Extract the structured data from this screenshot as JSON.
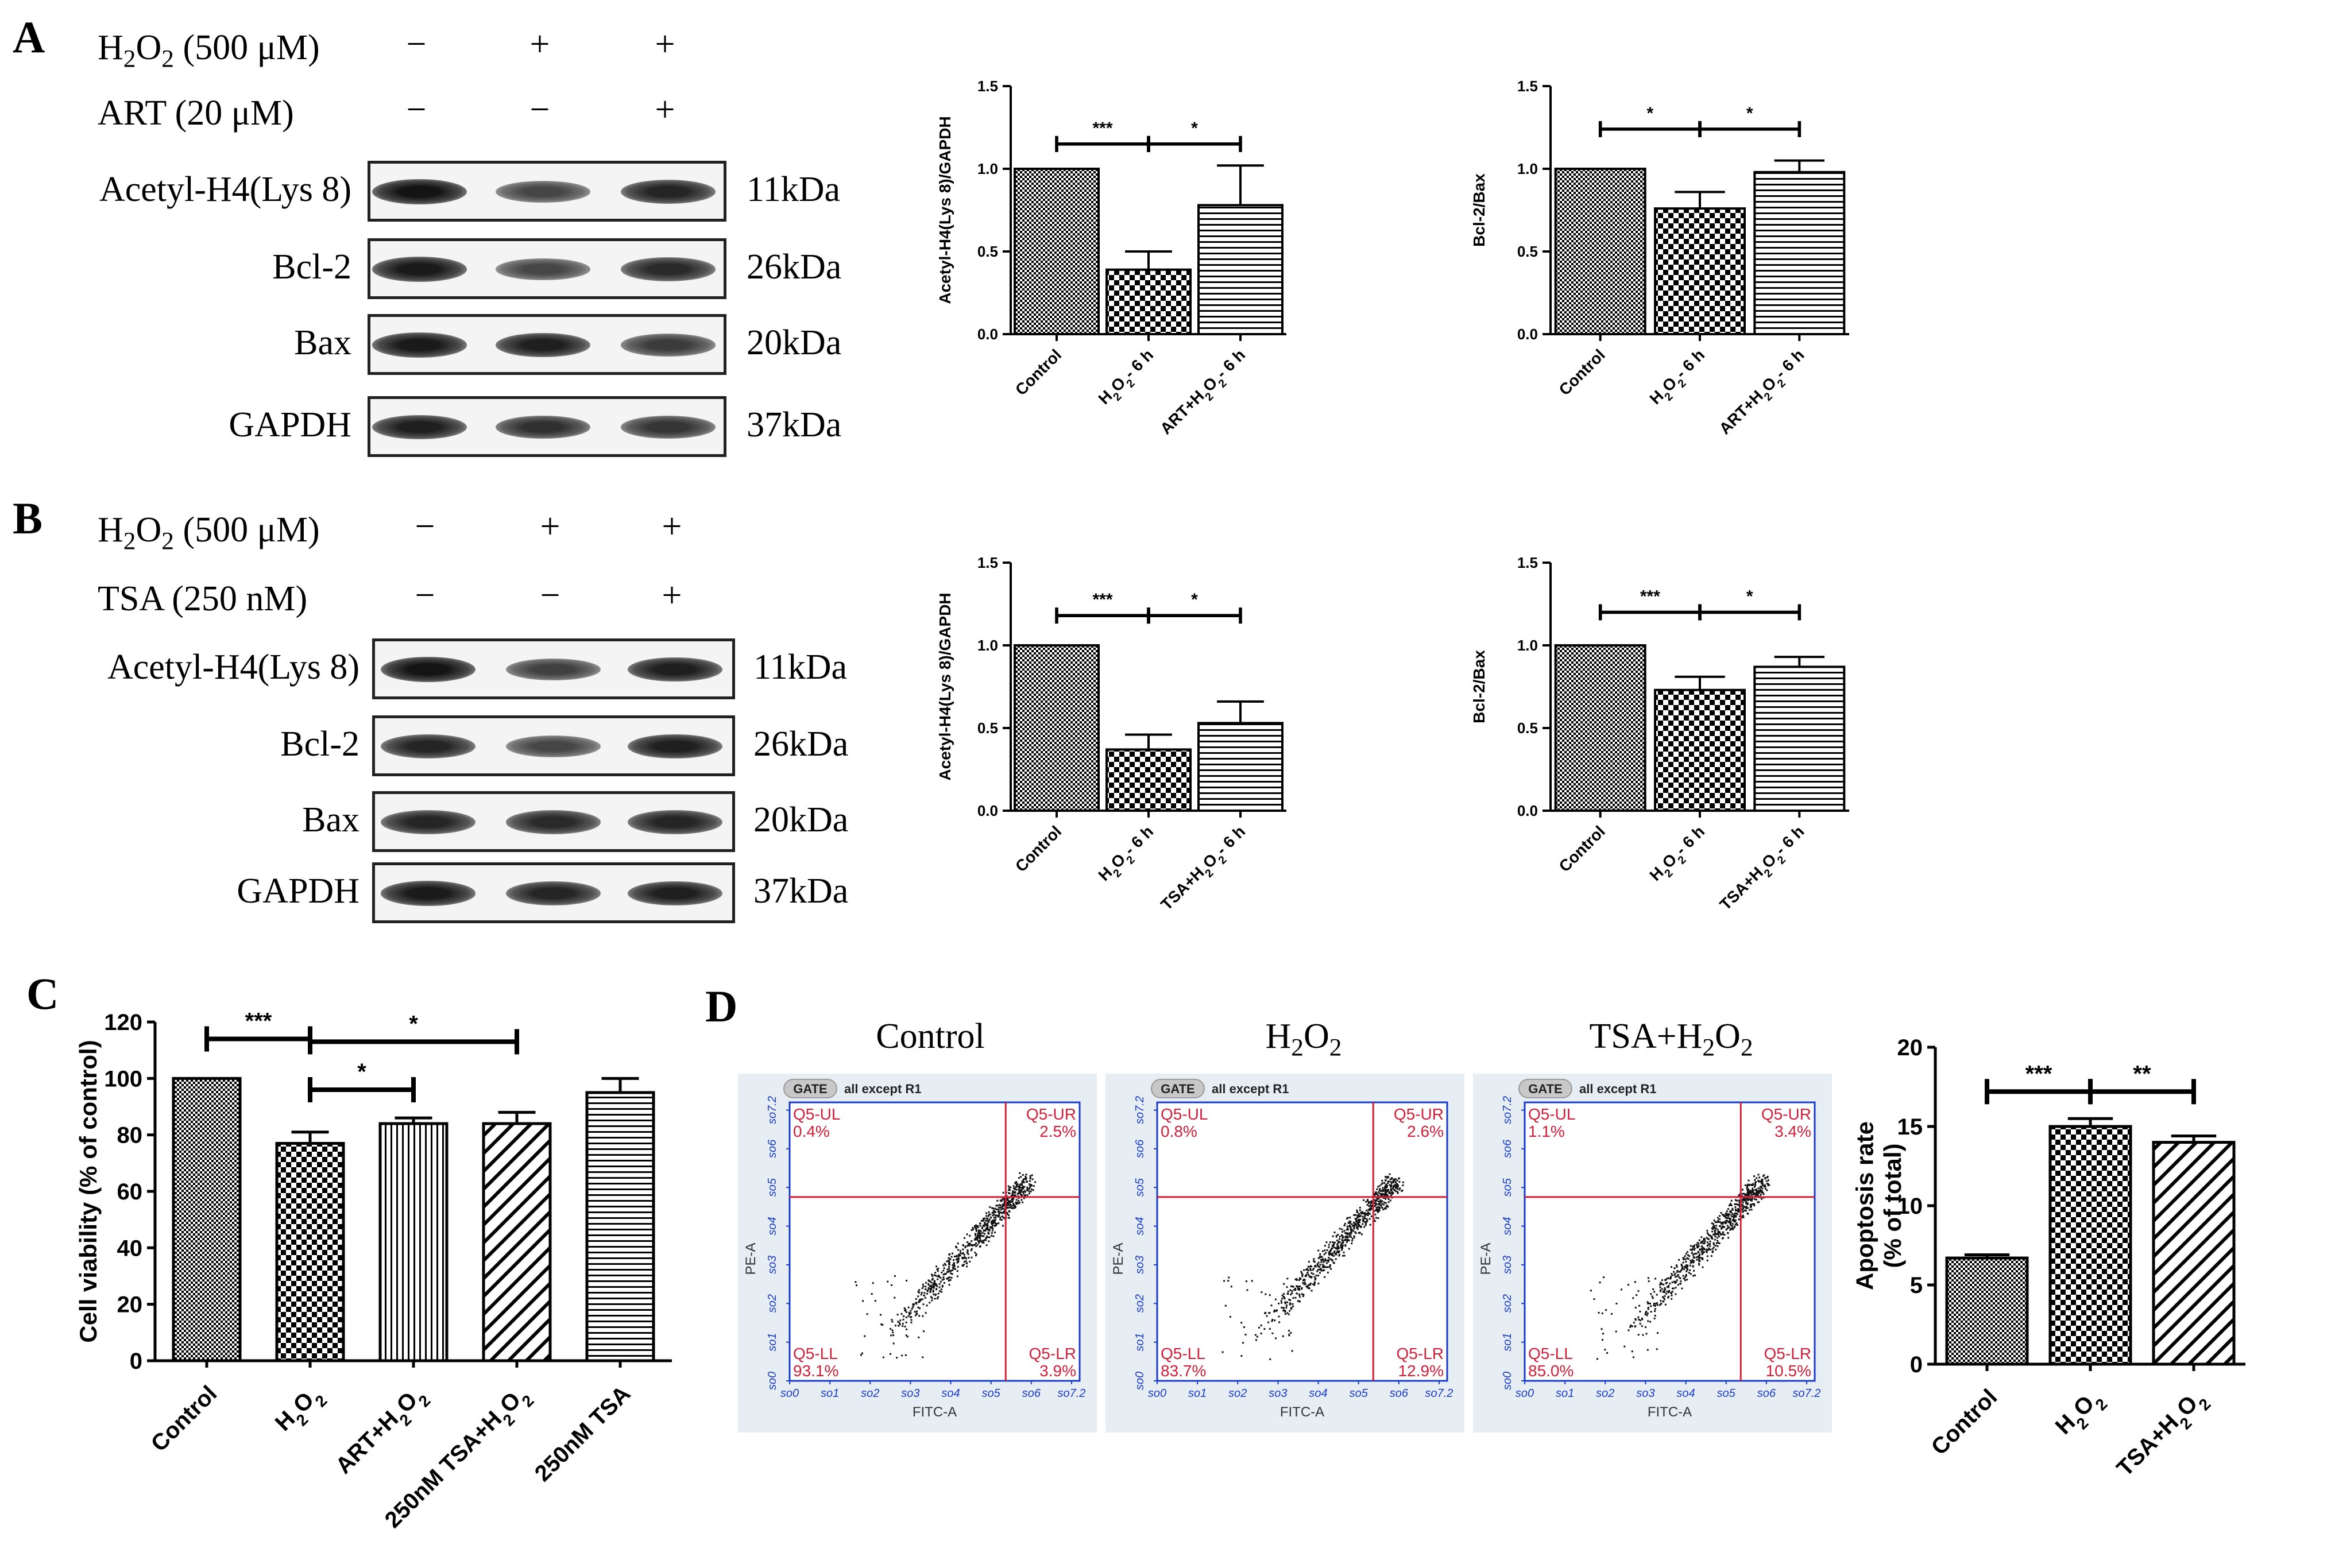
{
  "panels": {
    "A": {
      "letter": "A",
      "rows": [
        {
          "label_pre": "H",
          "sub1": "2",
          "mid": "O",
          "sub2": "2",
          "label_post": " (500 μM)",
          "signs": [
            "−",
            "+",
            "+"
          ]
        },
        {
          "label": "ART (20 μM)",
          "signs": [
            "−",
            "−",
            "+"
          ]
        }
      ],
      "blots": [
        {
          "protein": "Acetyl-H4(Lys 8)",
          "kda": "11kDa",
          "intensity": [
            1.0,
            0.55,
            0.85
          ]
        },
        {
          "protein": "Bcl-2",
          "kda": "26kDa",
          "intensity": [
            0.95,
            0.55,
            0.8
          ]
        },
        {
          "protein": "Bax",
          "kda": "20kDa",
          "intensity": [
            0.95,
            0.9,
            0.65
          ]
        },
        {
          "protein": "GAPDH",
          "kda": "37kDa",
          "intensity": [
            0.9,
            0.75,
            0.7
          ]
        }
      ]
    },
    "B": {
      "letter": "B",
      "rows": [
        {
          "label_pre": "H",
          "sub1": "2",
          "mid": "O",
          "sub2": "2",
          "label_post": " (500 μM)",
          "signs": [
            "−",
            "+",
            "+"
          ]
        },
        {
          "label": "TSA (250 nM)",
          "signs": [
            "−",
            "−",
            "+"
          ]
        }
      ],
      "blots": [
        {
          "protein": "Acetyl-H4(Lys 8)",
          "kda": "11kDa",
          "intensity": [
            1.0,
            0.6,
            0.9
          ]
        },
        {
          "protein": "Bcl-2",
          "kda": "26kDa",
          "intensity": [
            0.85,
            0.55,
            0.9
          ]
        },
        {
          "protein": "Bax",
          "kda": "20kDa",
          "intensity": [
            0.85,
            0.8,
            0.85
          ]
        },
        {
          "protein": "GAPDH",
          "kda": "37kDa",
          "intensity": [
            0.95,
            0.85,
            0.9
          ]
        }
      ]
    },
    "C": {
      "letter": "C"
    },
    "D": {
      "letter": "D",
      "flow": [
        {
          "title_pre": "Control",
          "title_sub": "",
          "title_post": "",
          "UL": "0.4%",
          "UR": "2.5%",
          "LL": "93.1%",
          "LR": "3.9%"
        },
        {
          "title_pre": "H",
          "title_sub": "2",
          "title_post": "O",
          "title_sub2": "2",
          "UL": "0.8%",
          "UR": "2.6%",
          "LL": "83.7%",
          "LR": "12.9%"
        },
        {
          "title_pre": "TSA+H",
          "title_sub": "2",
          "title_post": "O",
          "title_sub2": "2",
          "UL": "1.1%",
          "UR": "3.4%",
          "LL": "85.0%",
          "LR": "10.5%"
        }
      ],
      "flow_labels": {
        "gate": "GATE",
        "gate_text": "all except R1",
        "q_ul": "Q5-UL",
        "q_ur": "Q5-UR",
        "q_ll": "Q5-LL",
        "q_lr": "Q5-LR",
        "xlabel": "FITC-A",
        "ylabel": "PE-A",
        "ticks": [
          "0",
          "1",
          "2",
          "3",
          "4",
          "5",
          "6",
          "7.2"
        ]
      }
    }
  },
  "chart_data": [
    {
      "id": "A-acetyl",
      "type": "bar",
      "categories": [
        "Control",
        "H2O2- 6 h",
        "ART+H2O2- 6 h"
      ],
      "values": [
        1.0,
        0.39,
        0.78
      ],
      "errors": [
        0.0,
        0.11,
        0.24
      ],
      "ylabel": "Acetyl-H4(Lys 8)/GAPDH",
      "ylim": [
        0.0,
        1.5
      ],
      "yticks": [
        "0.0",
        "0.5",
        "1.0",
        "1.5"
      ],
      "significance": [
        {
          "from": 0,
          "to": 1,
          "label": "***"
        },
        {
          "from": 1,
          "to": 2,
          "label": "*"
        }
      ]
    },
    {
      "id": "A-bcl2bax",
      "type": "bar",
      "categories": [
        "Control",
        "H2O2- 6 h",
        "ART+H2O2- 6 h"
      ],
      "values": [
        1.0,
        0.76,
        0.98
      ],
      "errors": [
        0.0,
        0.1,
        0.07
      ],
      "ylabel": "Bcl-2/Bax",
      "ylim": [
        0.0,
        1.5
      ],
      "yticks": [
        "0.0",
        "0.5",
        "1.0",
        "1.5"
      ],
      "significance": [
        {
          "from": 0,
          "to": 1,
          "label": "*"
        },
        {
          "from": 1,
          "to": 2,
          "label": "*"
        }
      ]
    },
    {
      "id": "B-acetyl",
      "type": "bar",
      "categories": [
        "Control",
        "H2O2- 6 h",
        "TSA+H2O2- 6 h"
      ],
      "values": [
        1.0,
        0.37,
        0.53
      ],
      "errors": [
        0.0,
        0.09,
        0.13
      ],
      "ylabel": "Acetyl-H4(Lys 8)/GAPDH",
      "ylim": [
        0.0,
        1.5
      ],
      "yticks": [
        "0.0",
        "0.5",
        "1.0",
        "1.5"
      ],
      "significance": [
        {
          "from": 0,
          "to": 1,
          "label": "***"
        },
        {
          "from": 1,
          "to": 2,
          "label": "*"
        }
      ]
    },
    {
      "id": "B-bcl2bax",
      "type": "bar",
      "categories": [
        "Control",
        "H2O2- 6 h",
        "TSA+H2O2- 6 h"
      ],
      "values": [
        1.0,
        0.73,
        0.87
      ],
      "errors": [
        0.0,
        0.08,
        0.06
      ],
      "ylabel": "Bcl-2/Bax",
      "ylim": [
        0.0,
        1.5
      ],
      "yticks": [
        "0.0",
        "0.5",
        "1.0",
        "1.5"
      ],
      "significance": [
        {
          "from": 0,
          "to": 1,
          "label": "***"
        },
        {
          "from": 1,
          "to": 2,
          "label": "*"
        }
      ]
    },
    {
      "id": "C-viability",
      "type": "bar",
      "categories": [
        "Control",
        "H2O2",
        "ART+H2O2",
        "250nM TSA+H2O2",
        "250nM TSA"
      ],
      "values": [
        100,
        77,
        84,
        84,
        95
      ],
      "errors": [
        0,
        4,
        2,
        4,
        5
      ],
      "ylabel": "Cell viability (% of control)",
      "ylim": [
        0,
        120
      ],
      "yticks": [
        "0",
        "20",
        "40",
        "60",
        "80",
        "100",
        "120"
      ],
      "significance": [
        {
          "from": 0,
          "to": 1,
          "label": "***"
        },
        {
          "from": 1,
          "to": 3,
          "label": "*"
        },
        {
          "from": 1,
          "to": 2,
          "label": "*"
        }
      ]
    },
    {
      "id": "D-apoptosis",
      "type": "bar",
      "categories": [
        "Control",
        "H2O2",
        "TSA+H2O2"
      ],
      "values": [
        6.7,
        15.0,
        14.0
      ],
      "errors": [
        0.2,
        0.5,
        0.4
      ],
      "ylabel": "Apoptosis rate (% of total)",
      "ylim": [
        0,
        20
      ],
      "yticks": [
        "0",
        "5",
        "10",
        "15",
        "20"
      ],
      "significance": [
        {
          "from": 0,
          "to": 1,
          "label": "***"
        },
        {
          "from": 1,
          "to": 2,
          "label": "**"
        }
      ]
    }
  ]
}
